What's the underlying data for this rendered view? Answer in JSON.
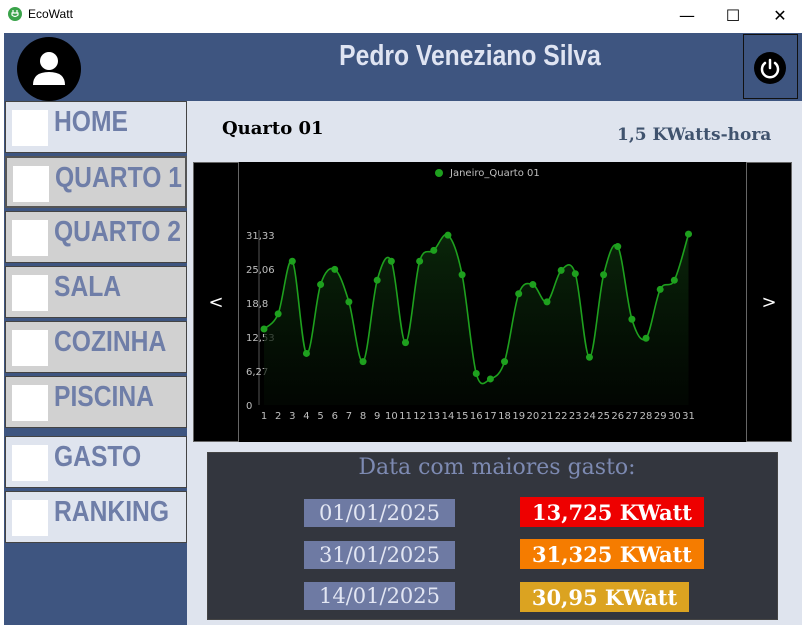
{
  "window": {
    "title": "EcoWatt",
    "minimize": "—",
    "maximize": "☐",
    "close": "✕"
  },
  "header": {
    "user_name": "Pedro Veneziano Silva"
  },
  "sidebar": {
    "items": [
      {
        "label": "HOME"
      },
      {
        "label": "QUARTO 1"
      },
      {
        "label": "QUARTO 2"
      },
      {
        "label": "SALA"
      },
      {
        "label": "COZINHA"
      },
      {
        "label": "PISCINA"
      },
      {
        "label": "GASTO"
      },
      {
        "label": "RANKING"
      }
    ]
  },
  "main": {
    "room_title": "Quarto 01",
    "usage": "1,5 KWatts-hora",
    "prev_label": "<",
    "next_label": ">"
  },
  "chart_data": {
    "type": "area",
    "legend": "Janeiro_Quarto 01",
    "legend_position": "top",
    "colors": {
      "line": "#1ea01e",
      "background": "#000000",
      "text": "#bfbfbf"
    },
    "x": [
      1,
      2,
      3,
      4,
      5,
      6,
      7,
      8,
      9,
      10,
      11,
      12,
      13,
      14,
      15,
      16,
      17,
      18,
      19,
      20,
      21,
      22,
      23,
      24,
      25,
      26,
      27,
      28,
      29,
      30,
      31
    ],
    "values": [
      14.0,
      16.8,
      26.5,
      9.5,
      22.2,
      25.0,
      19.0,
      8.0,
      23.0,
      26.5,
      11.5,
      26.5,
      28.5,
      31.3,
      24.0,
      5.8,
      4.8,
      8.0,
      20.5,
      22.2,
      19.0,
      24.8,
      24.2,
      8.8,
      24.0,
      29.2,
      15.8,
      12.3,
      21.3,
      23.0,
      31.5
    ],
    "y_ticks": [
      "0",
      "6,27",
      "12,53",
      "18,8",
      "25,06",
      "31,33"
    ],
    "x_tick_labels": [
      "1",
      "2",
      "3",
      "4",
      "5",
      "6",
      "7",
      "8",
      "9",
      "10",
      "11",
      "12",
      "13",
      "14",
      "15",
      "16",
      "17",
      "18",
      "19",
      "20",
      "21",
      "22",
      "23",
      "24",
      "25",
      "26",
      "27",
      "28",
      "29",
      "30",
      "31"
    ],
    "ylim": [
      0,
      31.33
    ]
  },
  "stats": {
    "title": "Data com maiores gasto:",
    "rows": [
      {
        "date": "01/01/2025",
        "value": "13,725 KWatt",
        "color": "#ee0000"
      },
      {
        "date": "31/01/2025",
        "value": "31,325 KWatt",
        "color": "#f57c00"
      },
      {
        "date": "14/01/2025",
        "value": "30,95 KWatt",
        "color": "#dba321"
      }
    ]
  }
}
